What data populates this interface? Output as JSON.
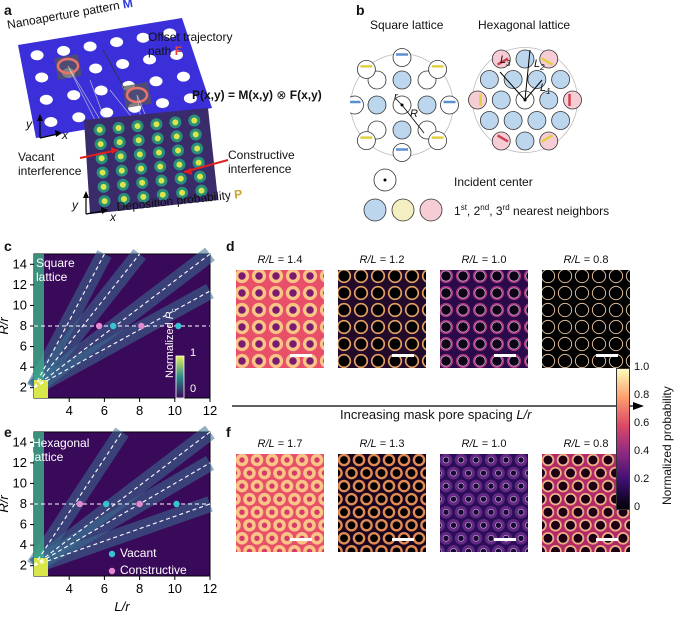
{
  "panel_a": {
    "label": "a",
    "mask_label": "Nanoaperture pattern",
    "mask_symbol": "M",
    "traj_label_1": "Offset trajectory",
    "traj_label_2": "path",
    "traj_symbol": "F",
    "equation_lhs": "P(x,y) = ",
    "equation_m": "M(x,y)",
    "equation_op": " ⊗ ",
    "equation_f": "F(x,y)",
    "vacant_1": "Vacant",
    "vacant_2": "interference",
    "constructive_1": "Constructive",
    "constructive_2": "interference",
    "deposition_label": "Deposition probability",
    "deposition_symbol": "P",
    "axis_x": "x",
    "axis_y": "y",
    "colors": {
      "mask": "#3b2fd6",
      "traj": "#e8736b",
      "symbol_m": "#2e3adb",
      "symbol_f": "#e0453c",
      "symbol_p": "#c9a227"
    }
  },
  "panel_b": {
    "label": "b",
    "square_title": "Square lattice",
    "hex_title": "Hexagonal lattice",
    "r_label": "r",
    "R_label": "R",
    "L1": "L",
    "L1_sub": "1",
    "L2": "L",
    "L2_sub": "2",
    "L3": "L",
    "L3_sub": "3",
    "incident_center": "Incident center",
    "neighbors_1": "1",
    "neighbors_1_sup": "st",
    "neighbors_2": "2",
    "neighbors_2_sup": "nd",
    "neighbors_3": "3",
    "neighbors_3_sup": "rd",
    "neighbors_text": "nearest neighbors",
    "colors": {
      "first": "#bcd6ee",
      "second": "#f4efc0",
      "third": "#f6cdd4"
    }
  },
  "panel_c": {
    "label": "c",
    "title_1": "Square",
    "title_2": "lattice",
    "colorbar_label": "Normalized",
    "colorbar_symbol": "P",
    "colorbar_sub": "c",
    "colorbar_max": "1",
    "colorbar_min": "0"
  },
  "panel_e": {
    "label": "e",
    "title_1": "Hexagonal",
    "title_2": "lattice",
    "legend_vacant": "Vacant",
    "legend_constructive": "Constructive"
  },
  "chart_data": [
    {
      "type": "line",
      "name": "c",
      "xlabel": "L/r",
      "ylabel": "R/r",
      "xlim": [
        2,
        12
      ],
      "ylim": [
        1,
        15
      ],
      "x_ticks": [
        "4",
        "6",
        "8",
        "10",
        "12"
      ],
      "y_ticks": [
        "2",
        "4",
        "6",
        "8",
        "10",
        "12",
        "14"
      ],
      "reference_line_y": 8,
      "lines": [
        {
          "x": [
            2,
            12
          ],
          "y": [
            2,
            11.4
          ]
        },
        {
          "x": [
            2,
            12
          ],
          "y": [
            2,
            15
          ]
        },
        {
          "x": [
            2,
            8
          ],
          "y": [
            2,
            15
          ]
        },
        {
          "x": [
            2,
            6
          ],
          "y": [
            2,
            15
          ]
        }
      ],
      "vacant_points": [
        {
          "x": 6.5,
          "y": 8
        },
        {
          "x": 10.2,
          "y": 8
        }
      ],
      "constructive_points": [
        {
          "x": 5.7,
          "y": 8
        },
        {
          "x": 8.1,
          "y": 8
        }
      ]
    },
    {
      "type": "line",
      "name": "e",
      "xlabel": "L/r",
      "ylabel": "R/r",
      "xlim": [
        2,
        12
      ],
      "ylim": [
        1,
        15
      ],
      "x_ticks": [
        "4",
        "6",
        "8",
        "10",
        "12"
      ],
      "y_ticks": [
        "2",
        "4",
        "6",
        "8",
        "10",
        "12",
        "14"
      ],
      "reference_line_y": 8,
      "lines": [
        {
          "x": [
            2,
            12
          ],
          "y": [
            2,
            8
          ]
        },
        {
          "x": [
            2,
            12
          ],
          "y": [
            2,
            12
          ]
        },
        {
          "x": [
            2,
            12
          ],
          "y": [
            2,
            15
          ]
        },
        {
          "x": [
            2,
            7
          ],
          "y": [
            2,
            15
          ]
        }
      ],
      "vacant_points": [
        {
          "x": 6.1,
          "y": 8
        },
        {
          "x": 10.1,
          "y": 8
        }
      ],
      "constructive_points": [
        {
          "x": 4.6,
          "y": 8
        },
        {
          "x": 8.0,
          "y": 8
        }
      ]
    }
  ],
  "panel_d": {
    "label": "d",
    "maps": [
      {
        "ratio_prefix": "R/L",
        "value": "= 1.4"
      },
      {
        "ratio_prefix": "R/L",
        "value": "= 1.2"
      },
      {
        "ratio_prefix": "R/L",
        "value": "= 1.0"
      },
      {
        "ratio_prefix": "R/L",
        "value": "= 0.8"
      }
    ]
  },
  "panel_f": {
    "label": "f",
    "maps": [
      {
        "ratio_prefix": "R/L",
        "value": "= 1.7"
      },
      {
        "ratio_prefix": "R/L",
        "value": "= 1.3"
      },
      {
        "ratio_prefix": "R/L",
        "value": "= 1.0"
      },
      {
        "ratio_prefix": "R/L",
        "value": "= 0.8"
      }
    ]
  },
  "arrow_label": "Increasing mask pore spacing ",
  "arrow_label_symbol": "L/r",
  "colorbar": {
    "label": "Normalized probability",
    "ticks": [
      "1.0",
      "0.8",
      "0.6",
      "0.4",
      "0.2",
      "0"
    ]
  }
}
